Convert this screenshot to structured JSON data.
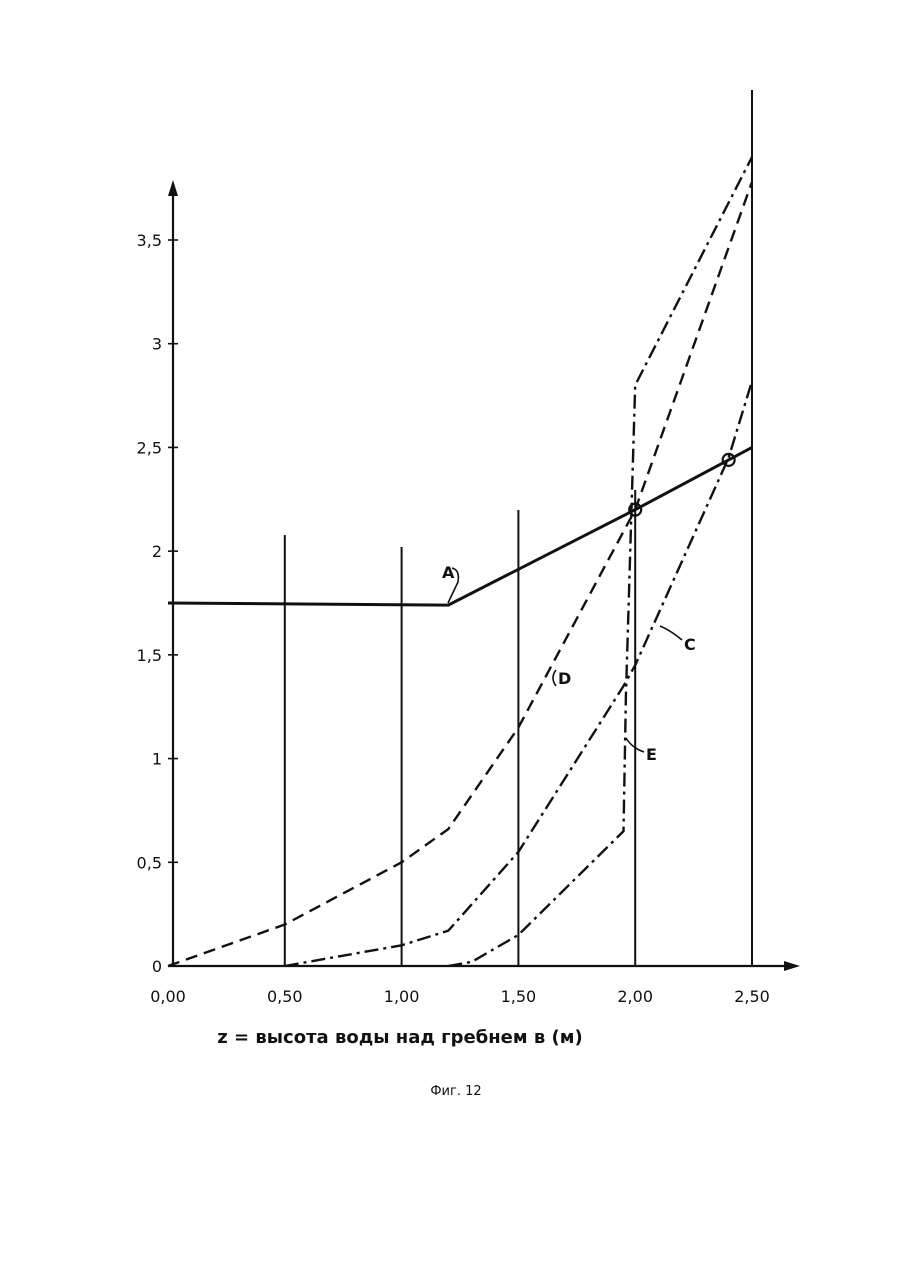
{
  "chart_data": {
    "type": "line",
    "xlabel": "z = высота воды над гребнем в (м)",
    "caption": "Фиг. 12",
    "xlim": [
      0,
      2.5
    ],
    "ylim": [
      0,
      3.5
    ],
    "x_ticks": [
      "0,00",
      "0,50",
      "1,00",
      "1,50",
      "2,00",
      "2,50"
    ],
    "y_ticks": [
      "0",
      "0,5",
      "1",
      "1,5",
      "2",
      "2,5",
      "3",
      "3,5"
    ],
    "x_tick_values": [
      0,
      0.5,
      1.0,
      1.5,
      2.0,
      2.5
    ],
    "y_tick_values": [
      0,
      0.5,
      1,
      1.5,
      2,
      2.5,
      3,
      3.5
    ],
    "vertical_lines": [
      0.5,
      1.0,
      1.5,
      2.0,
      2.5
    ],
    "series": [
      {
        "name": "A",
        "style": "solid",
        "points": [
          [
            0,
            1.75
          ],
          [
            1.2,
            1.74
          ],
          [
            2.0,
            2.2
          ],
          [
            2.5,
            2.5
          ]
        ]
      },
      {
        "name": "D",
        "style": "dashed",
        "points": [
          [
            0,
            0
          ],
          [
            0.5,
            0.2
          ],
          [
            1.0,
            0.5
          ],
          [
            1.2,
            0.66
          ],
          [
            1.5,
            1.15
          ],
          [
            2.0,
            2.2
          ],
          [
            2.5,
            3.78
          ]
        ]
      },
      {
        "name": "C",
        "style": "dashdot",
        "points": [
          [
            0.5,
            0
          ],
          [
            1.0,
            0.1
          ],
          [
            1.2,
            0.17
          ],
          [
            1.5,
            0.55
          ],
          [
            1.95,
            1.35
          ],
          [
            2.0,
            1.45
          ],
          [
            2.4,
            2.45
          ],
          [
            2.5,
            2.82
          ]
        ]
      },
      {
        "name": "E",
        "style": "dashdot",
        "points": [
          [
            1.2,
            0
          ],
          [
            1.3,
            0.02
          ],
          [
            1.5,
            0.15
          ],
          [
            1.95,
            0.65
          ],
          [
            1.96,
            1.3
          ],
          [
            2.0,
            2.8
          ],
          [
            2.5,
            3.9
          ]
        ]
      }
    ],
    "markers": [
      [
        2.0,
        2.2
      ],
      [
        2.4,
        2.44
      ]
    ],
    "grid": false
  }
}
